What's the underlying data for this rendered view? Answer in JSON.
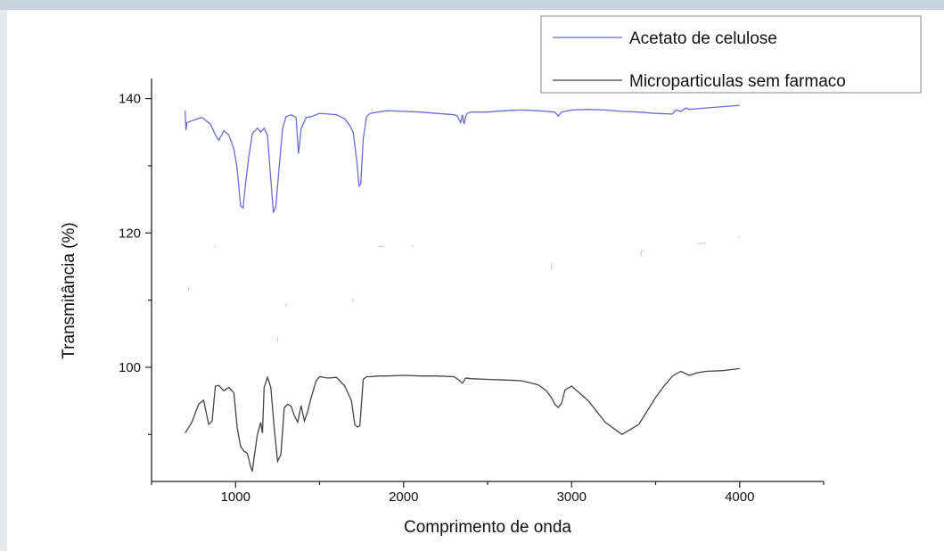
{
  "chart_data": {
    "type": "line",
    "title": "",
    "xlabel": "Comprimento de onda",
    "ylabel": "Transmitância (%)",
    "xlim": [
      500,
      4500
    ],
    "ylim": [
      83,
      143
    ],
    "x_ticks": [
      1000,
      2000,
      3000,
      4000
    ],
    "y_ticks": [
      100,
      120,
      140
    ],
    "grid": false,
    "legend_position": "top-right",
    "series": [
      {
        "name": "Acetato de celulose",
        "color": "#6b6bd6",
        "x": [
          700,
          705,
          710,
          750,
          800,
          850,
          880,
          900,
          930,
          960,
          990,
          1010,
          1030,
          1045,
          1060,
          1080,
          1100,
          1130,
          1150,
          1170,
          1190,
          1210,
          1225,
          1240,
          1260,
          1280,
          1300,
          1330,
          1360,
          1375,
          1390,
          1420,
          1450,
          1500,
          1550,
          1600,
          1650,
          1680,
          1700,
          1720,
          1735,
          1745,
          1760,
          1780,
          1800,
          1850,
          1900,
          2000,
          2100,
          2200,
          2300,
          2320,
          2340,
          2350,
          2360,
          2370,
          2380,
          2400,
          2500,
          2600,
          2700,
          2800,
          2900,
          2920,
          2940,
          3000,
          3100,
          3200,
          3300,
          3400,
          3500,
          3600,
          3620,
          3650,
          3680,
          3700,
          3750,
          3800,
          3900,
          4000
        ],
        "y": [
          138.2,
          135.3,
          136.4,
          136.8,
          137.2,
          136.2,
          134.6,
          133.8,
          135.2,
          134.6,
          132.5,
          129.5,
          124.0,
          123.7,
          127.5,
          131.5,
          134.8,
          135.6,
          135.0,
          135.6,
          134.5,
          128.0,
          123.0,
          124.0,
          130.0,
          135.5,
          137.3,
          137.6,
          137.2,
          131.8,
          135.5,
          137.2,
          137.3,
          137.8,
          137.7,
          137.6,
          137.0,
          136.0,
          135.0,
          131.0,
          127.0,
          127.3,
          134.0,
          137.3,
          137.8,
          138.0,
          138.2,
          138.1,
          138.0,
          137.8,
          137.6,
          137.4,
          136.4,
          137.6,
          136.2,
          137.4,
          137.8,
          138.0,
          138.0,
          138.2,
          138.3,
          138.2,
          138.0,
          137.4,
          138.0,
          138.3,
          138.4,
          138.3,
          138.1,
          138.0,
          137.8,
          137.7,
          138.3,
          138.1,
          138.6,
          138.4,
          138.5,
          138.6,
          138.8,
          139.0
        ]
      },
      {
        "name": "Microparticulas sem farmaco",
        "color": "#444444",
        "x": [
          700,
          740,
          780,
          810,
          840,
          860,
          880,
          900,
          930,
          960,
          990,
          1010,
          1030,
          1050,
          1070,
          1090,
          1100,
          1110,
          1130,
          1150,
          1160,
          1170,
          1190,
          1210,
          1230,
          1250,
          1270,
          1290,
          1310,
          1330,
          1350,
          1370,
          1390,
          1410,
          1430,
          1450,
          1480,
          1500,
          1550,
          1600,
          1650,
          1690,
          1710,
          1725,
          1740,
          1760,
          1780,
          1800,
          1850,
          1900,
          2000,
          2100,
          2200,
          2300,
          2330,
          2350,
          2370,
          2400,
          2500,
          2600,
          2700,
          2800,
          2850,
          2880,
          2900,
          2920,
          2940,
          2960,
          3000,
          3100,
          3200,
          3300,
          3400,
          3450,
          3500,
          3550,
          3600,
          3650,
          3700,
          3750,
          3800,
          3900,
          4000
        ],
        "y": [
          90.2,
          91.8,
          94.5,
          95.1,
          91.5,
          92.0,
          97.2,
          97.3,
          96.5,
          97.0,
          96.2,
          91.0,
          88.2,
          87.5,
          87.2,
          85.2,
          84.5,
          86.5,
          90.0,
          91.8,
          90.2,
          97.0,
          98.5,
          97.0,
          91.0,
          86.0,
          87.0,
          94.0,
          94.5,
          94.2,
          92.8,
          91.8,
          94.3,
          92.0,
          93.5,
          95.5,
          98.0,
          98.6,
          98.4,
          98.5,
          97.2,
          95.0,
          91.4,
          91.1,
          91.3,
          98.2,
          98.6,
          98.6,
          98.7,
          98.7,
          98.8,
          98.7,
          98.7,
          98.6,
          98.1,
          97.6,
          98.4,
          98.3,
          98.2,
          98.1,
          98.0,
          97.4,
          96.5,
          95.5,
          94.5,
          94.0,
          94.6,
          96.6,
          97.2,
          95.0,
          91.8,
          90.0,
          91.5,
          93.5,
          95.5,
          97.2,
          98.7,
          99.4,
          98.8,
          99.2,
          99.4,
          99.5,
          99.8
        ]
      }
    ]
  }
}
